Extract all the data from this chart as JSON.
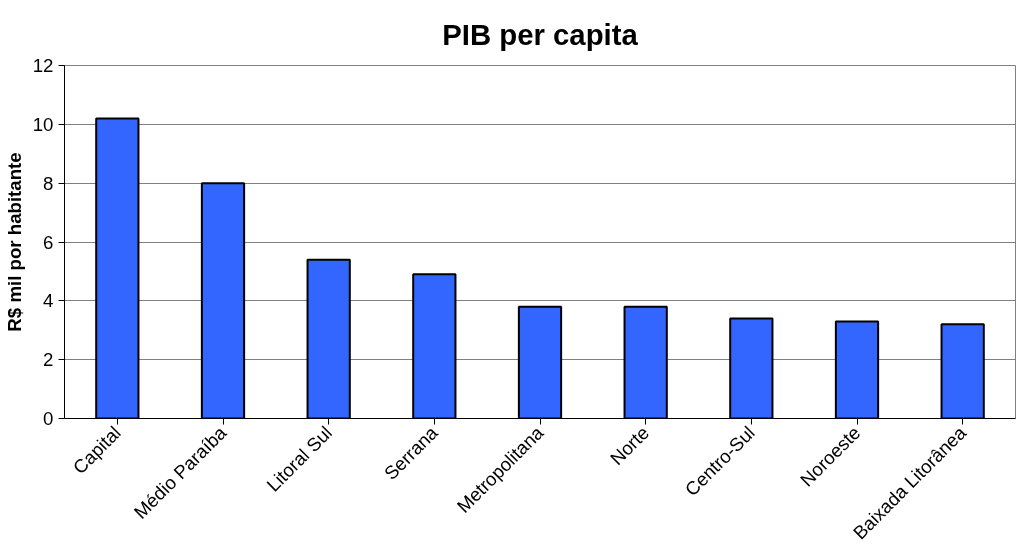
{
  "chart_data": {
    "type": "bar",
    "title": "PIB per capita",
    "ylabel": "R$ mil por habitante",
    "categories": [
      "Capital",
      "Médio Paraíba",
      "Litoral Sul",
      "Serrana",
      "Metropolitana",
      "Norte",
      "Centro-Sul",
      "Noroeste",
      "Baixada Litorânea"
    ],
    "values": [
      10.2,
      8.0,
      5.4,
      4.9,
      3.8,
      3.8,
      3.4,
      3.3,
      3.2
    ],
    "color": "#3366ff",
    "ylim": [
      0,
      12
    ],
    "yticks": [
      0,
      2,
      4,
      6,
      8,
      10,
      12
    ],
    "grid": "y"
  }
}
